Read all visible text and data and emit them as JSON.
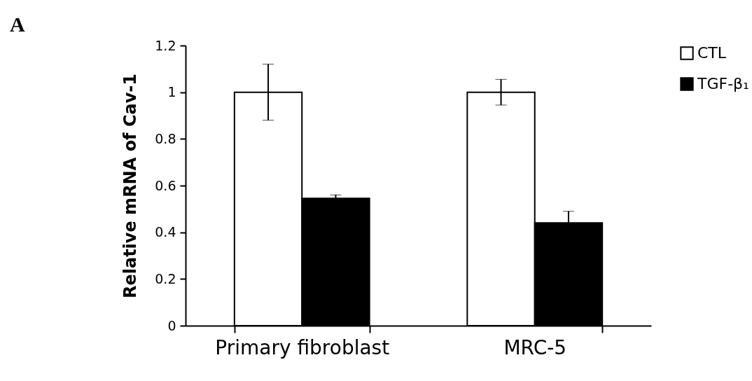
{
  "chart_data": {
    "type": "bar",
    "ylabel": "Relative mRNA of Cav-1",
    "categories": [
      "Primary fibroblast",
      "MRC-5"
    ],
    "series": [
      {
        "name": "CTL",
        "color": "#ffffff",
        "values": [
          1.0,
          1.0
        ],
        "errors": [
          0.12,
          0.055
        ]
      },
      {
        "name": "TGF-β₁",
        "color": "#000000",
        "values": [
          0.545,
          0.44
        ],
        "errors": [
          0.015,
          0.05
        ]
      }
    ],
    "ylim": [
      0,
      1.2
    ],
    "yticks": [
      0,
      0.2,
      0.4,
      0.6,
      0.8,
      1,
      1.2
    ],
    "grid": false,
    "legend": "top right",
    "annotations": [
      "A"
    ]
  }
}
